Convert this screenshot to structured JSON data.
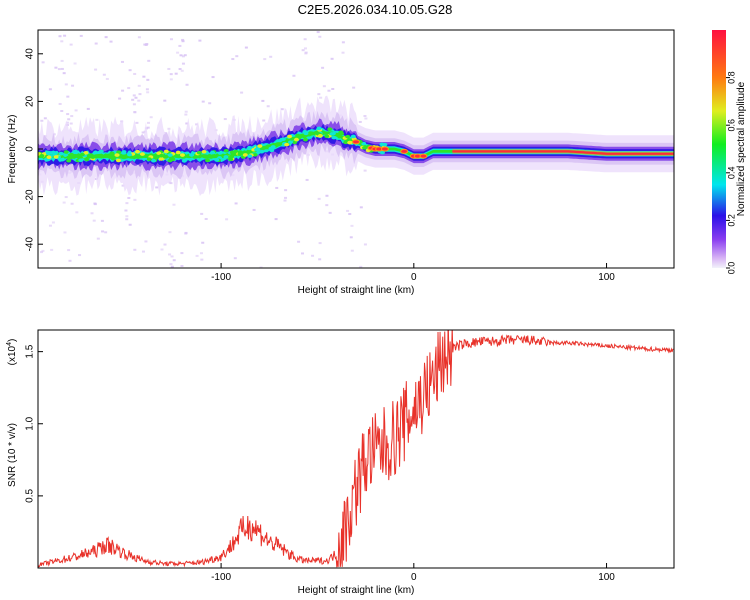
{
  "title": "C2E5.2026.034.10.05.G28",
  "chart_data": [
    {
      "type": "heatmap",
      "xlabel": "Height of straight line (km)",
      "ylabel": "Frequency (Hz)",
      "xlim": [
        -195,
        135
      ],
      "ylim": [
        -50,
        50
      ],
      "xticks": [
        -100,
        0,
        100
      ],
      "xtick_labels": [
        "-100",
        "0",
        "100"
      ],
      "yticks": [
        -40,
        -20,
        0,
        20,
        40
      ],
      "ytick_labels": [
        "-40",
        "-20",
        "0",
        "20",
        "40"
      ],
      "ridge": {
        "x": [
          -195,
          -180,
          -160,
          -140,
          -120,
          -100,
          -90,
          -80,
          -70,
          -60,
          -50,
          -40,
          -35,
          -30,
          -25,
          -20,
          -10,
          -5,
          0,
          5,
          10,
          20,
          40,
          60,
          80,
          100,
          120,
          135
        ],
        "y": [
          -3,
          -3,
          -3,
          -3,
          -3,
          -3,
          -2,
          0,
          2,
          5,
          7,
          6,
          4,
          3,
          1,
          0,
          0,
          -1,
          -3,
          -3,
          -1,
          -1,
          -1,
          -1,
          -1,
          -2,
          -2,
          -2
        ]
      },
      "colorbar": {
        "label": "Normalized spectral amplitude",
        "range": [
          0,
          1
        ],
        "ticks": [
          0.0,
          0.2,
          0.4,
          0.6,
          0.8
        ],
        "tick_labels": [
          "0.0",
          "0.2",
          "0.4",
          "0.6",
          "0.8"
        ]
      }
    },
    {
      "type": "line",
      "xlabel": "Height of straight line (km)",
      "ylabel": "SNR (10 * v/v)",
      "multiplier": "(x10",
      "multiplier_exp": "4",
      "multiplier_close": ")",
      "xlim": [
        -195,
        135
      ],
      "ylim": [
        0,
        1.65
      ],
      "xticks": [
        -100,
        0,
        100
      ],
      "xtick_labels": [
        "-100",
        "0",
        "100"
      ],
      "yticks": [
        0.5,
        1.0,
        1.5
      ],
      "ytick_labels": [
        "0.5",
        "1.0",
        "1.5"
      ],
      "series": [
        {
          "name": "SNR",
          "color": "#e8322a",
          "x": [
            -195,
            -185,
            -175,
            -165,
            -160,
            -155,
            -150,
            -140,
            -130,
            -120,
            -110,
            -100,
            -95,
            -90,
            -85,
            -80,
            -75,
            -70,
            -65,
            -60,
            -55,
            -50,
            -45,
            -40,
            -37,
            -35,
            -30,
            -25,
            -22,
            -20,
            -15,
            -10,
            -5,
            0,
            5,
            10,
            15,
            20,
            25,
            30,
            35,
            40,
            50,
            60,
            70,
            80,
            90,
            100,
            110,
            120,
            135
          ],
          "y": [
            0.02,
            0.05,
            0.08,
            0.12,
            0.16,
            0.14,
            0.1,
            0.05,
            0.03,
            0.03,
            0.04,
            0.08,
            0.15,
            0.25,
            0.3,
            0.25,
            0.18,
            0.15,
            0.1,
            0.06,
            0.05,
            0.05,
            0.05,
            0.1,
            0.2,
            0.3,
            0.55,
            0.75,
            0.8,
            0.8,
            0.85,
            0.9,
            1.0,
            1.1,
            1.2,
            1.3,
            1.45,
            1.52,
            1.55,
            1.56,
            1.57,
            1.57,
            1.58,
            1.58,
            1.56,
            1.56,
            1.55,
            1.54,
            1.53,
            1.52,
            1.51
          ]
        }
      ]
    }
  ]
}
